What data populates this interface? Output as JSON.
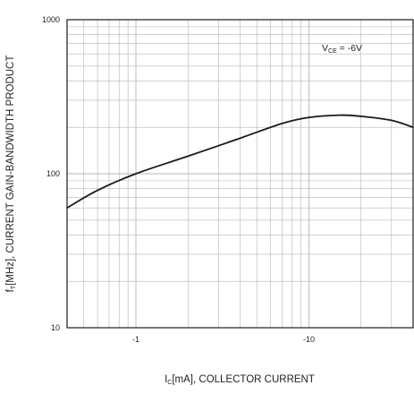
{
  "chart_data": {
    "type": "line",
    "title": "",
    "xlabel": {
      "symbol": "I",
      "subscript": "C",
      "rest": "[mA], COLLECTOR CURRENT"
    },
    "ylabel": {
      "symbol": "f",
      "subscript": "T",
      "rest": "[MHz], CURRENT GAIN-BANDWIDTH PRODUCT"
    },
    "xscale": "log",
    "yscale": "log",
    "xlim": [
      0.4,
      40
    ],
    "ylim": [
      10,
      1000
    ],
    "x_tick_values": [
      1,
      10
    ],
    "x_tick_labels": [
      "-1",
      "-10"
    ],
    "y_tick_values": [
      10,
      100,
      1000
    ],
    "y_tick_labels": [
      "10",
      "100",
      "1000"
    ],
    "grid": true,
    "annotation": {
      "symbol": "V",
      "subscript": "CE",
      "rest": " = -6V"
    },
    "series": [
      {
        "x": [
          0.4,
          0.6,
          1,
          2,
          4,
          7,
          10,
          15,
          20,
          30,
          40
        ],
        "y": [
          60,
          78,
          100,
          130,
          170,
          212,
          232,
          240,
          236,
          222,
          200
        ]
      }
    ],
    "colors": {
      "line": "#1a1a1a",
      "grid": "#b5b5b5",
      "frame": "#1a1a1a"
    }
  }
}
